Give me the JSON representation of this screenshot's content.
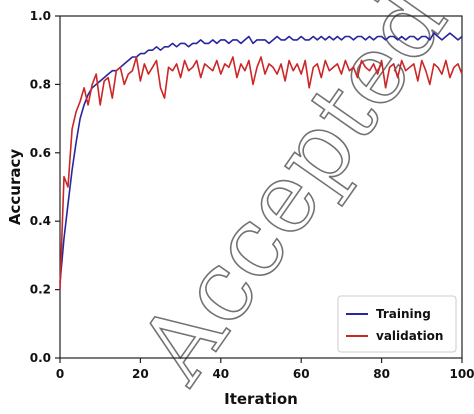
{
  "chart_data": {
    "type": "line",
    "title": "",
    "xlabel": "Iteration",
    "ylabel": "Accuracy",
    "xlim": [
      0,
      100
    ],
    "ylim": [
      0.0,
      1.0
    ],
    "x_ticks": [
      0,
      20,
      40,
      60,
      80,
      100
    ],
    "x_tick_labels": [
      "0",
      "20",
      "40",
      "60",
      "80",
      "100"
    ],
    "y_ticks": [
      0.0,
      0.2,
      0.4,
      0.6,
      0.8,
      1.0
    ],
    "y_tick_labels": [
      "0.0",
      "0.2",
      "0.4",
      "0.6",
      "0.8",
      "1.0"
    ],
    "grid": false,
    "legend_position": "bottom-right",
    "series": [
      {
        "name": "Training",
        "color": "#2727a0",
        "x": [
          0,
          1,
          2,
          3,
          4,
          5,
          6,
          7,
          8,
          9,
          10,
          11,
          12,
          13,
          14,
          15,
          16,
          17,
          18,
          19,
          20,
          21,
          22,
          23,
          24,
          25,
          26,
          27,
          28,
          29,
          30,
          31,
          32,
          33,
          34,
          35,
          36,
          37,
          38,
          39,
          40,
          41,
          42,
          43,
          44,
          45,
          46,
          47,
          48,
          49,
          50,
          51,
          52,
          53,
          54,
          55,
          56,
          57,
          58,
          59,
          60,
          61,
          62,
          63,
          64,
          65,
          66,
          67,
          68,
          69,
          70,
          71,
          72,
          73,
          74,
          75,
          76,
          77,
          78,
          79,
          80,
          81,
          82,
          83,
          84,
          85,
          86,
          87,
          88,
          89,
          90,
          91,
          92,
          93,
          94,
          95,
          96,
          97,
          98,
          99,
          100
        ],
        "y": [
          0.22,
          0.35,
          0.45,
          0.55,
          0.63,
          0.7,
          0.74,
          0.77,
          0.79,
          0.8,
          0.81,
          0.82,
          0.83,
          0.84,
          0.84,
          0.85,
          0.86,
          0.87,
          0.88,
          0.88,
          0.89,
          0.89,
          0.9,
          0.9,
          0.91,
          0.9,
          0.91,
          0.91,
          0.92,
          0.91,
          0.92,
          0.92,
          0.91,
          0.92,
          0.92,
          0.93,
          0.92,
          0.92,
          0.93,
          0.92,
          0.93,
          0.93,
          0.92,
          0.93,
          0.93,
          0.92,
          0.93,
          0.94,
          0.92,
          0.93,
          0.93,
          0.93,
          0.92,
          0.93,
          0.94,
          0.93,
          0.93,
          0.94,
          0.93,
          0.93,
          0.94,
          0.93,
          0.93,
          0.94,
          0.93,
          0.94,
          0.93,
          0.94,
          0.93,
          0.94,
          0.93,
          0.94,
          0.94,
          0.93,
          0.94,
          0.94,
          0.93,
          0.94,
          0.93,
          0.94,
          0.94,
          0.93,
          0.94,
          0.94,
          0.93,
          0.94,
          0.93,
          0.94,
          0.94,
          0.93,
          0.94,
          0.94,
          0.93,
          0.95,
          0.94,
          0.93,
          0.94,
          0.95,
          0.94,
          0.93,
          0.94
        ]
      },
      {
        "name": "validation",
        "color": "#cc2626",
        "x": [
          0,
          1,
          2,
          3,
          4,
          5,
          6,
          7,
          8,
          9,
          10,
          11,
          12,
          13,
          14,
          15,
          16,
          17,
          18,
          19,
          20,
          21,
          22,
          23,
          24,
          25,
          26,
          27,
          28,
          29,
          30,
          31,
          32,
          33,
          34,
          35,
          36,
          37,
          38,
          39,
          40,
          41,
          42,
          43,
          44,
          45,
          46,
          47,
          48,
          49,
          50,
          51,
          52,
          53,
          54,
          55,
          56,
          57,
          58,
          59,
          60,
          61,
          62,
          63,
          64,
          65,
          66,
          67,
          68,
          69,
          70,
          71,
          72,
          73,
          74,
          75,
          76,
          77,
          78,
          79,
          80,
          81,
          82,
          83,
          84,
          85,
          86,
          87,
          88,
          89,
          90,
          91,
          92,
          93,
          94,
          95,
          96,
          97,
          98,
          99,
          100
        ],
        "y": [
          0.2,
          0.53,
          0.5,
          0.67,
          0.72,
          0.75,
          0.79,
          0.74,
          0.8,
          0.83,
          0.74,
          0.81,
          0.82,
          0.76,
          0.84,
          0.85,
          0.8,
          0.83,
          0.84,
          0.88,
          0.81,
          0.86,
          0.83,
          0.85,
          0.87,
          0.79,
          0.76,
          0.85,
          0.84,
          0.86,
          0.82,
          0.87,
          0.84,
          0.85,
          0.87,
          0.82,
          0.86,
          0.85,
          0.84,
          0.87,
          0.83,
          0.86,
          0.85,
          0.88,
          0.82,
          0.86,
          0.84,
          0.87,
          0.8,
          0.85,
          0.88,
          0.83,
          0.86,
          0.85,
          0.83,
          0.86,
          0.81,
          0.87,
          0.84,
          0.86,
          0.83,
          0.87,
          0.79,
          0.85,
          0.86,
          0.82,
          0.87,
          0.84,
          0.85,
          0.86,
          0.83,
          0.87,
          0.84,
          0.85,
          0.82,
          0.87,
          0.85,
          0.84,
          0.86,
          0.83,
          0.87,
          0.79,
          0.85,
          0.86,
          0.82,
          0.87,
          0.84,
          0.85,
          0.86,
          0.81,
          0.87,
          0.84,
          0.8,
          0.86,
          0.85,
          0.83,
          0.87,
          0.82,
          0.85,
          0.86,
          0.83
        ]
      }
    ]
  }
}
